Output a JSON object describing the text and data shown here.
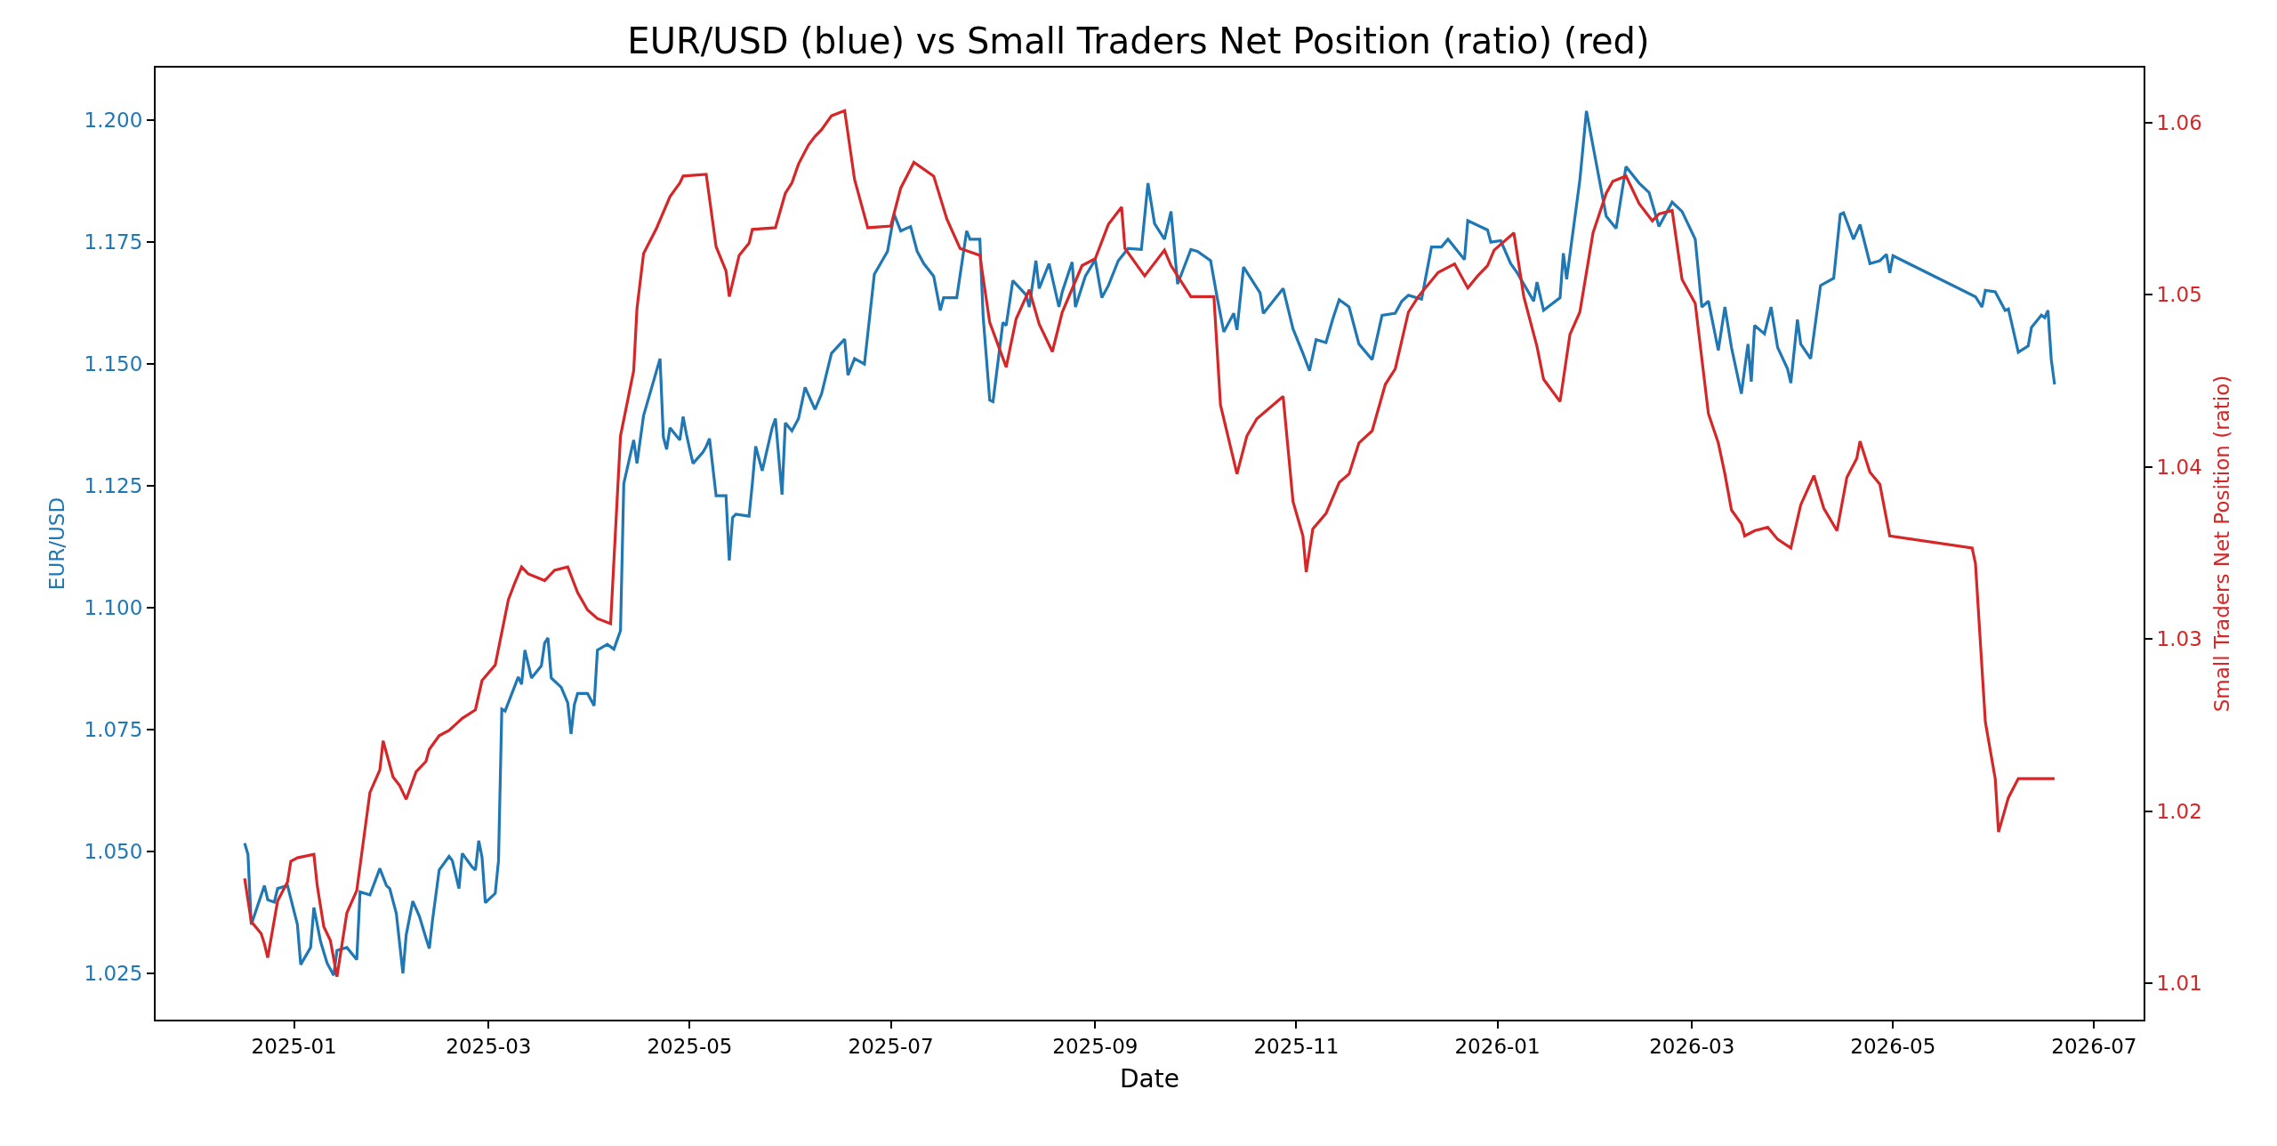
{
  "chart_data": {
    "type": "line",
    "title": "EUR/USD (blue) vs Small Traders Net Position (ratio) (red)",
    "xlabel": "Date",
    "ylabel": "EUR/USD",
    "y2label": "Small Traders Net Position (ratio)",
    "xlim": [
      "2024-11-20",
      "2026-07-16"
    ],
    "xticks": [
      {
        "value": "2025-01-01",
        "label": "2025-01"
      },
      {
        "value": "2025-03-01",
        "label": "2025-03"
      },
      {
        "value": "2025-05-01",
        "label": "2025-05"
      },
      {
        "value": "2025-07-01",
        "label": "2025-07"
      },
      {
        "value": "2025-09-01",
        "label": "2025-09"
      },
      {
        "value": "2025-11-01",
        "label": "2025-11"
      },
      {
        "value": "2026-01-01",
        "label": "2026-01"
      },
      {
        "value": "2026-03-01",
        "label": "2026-03"
      },
      {
        "value": "2026-05-01",
        "label": "2026-05"
      },
      {
        "value": "2026-07-01",
        "label": "2026-07"
      }
    ],
    "ylim": [
      1.0155,
      1.2108
    ],
    "yticks": [
      {
        "value": 1.025,
        "label": "1.025"
      },
      {
        "value": 1.05,
        "label": "1.050"
      },
      {
        "value": 1.075,
        "label": "1.075"
      },
      {
        "value": 1.1,
        "label": "1.100"
      },
      {
        "value": 1.125,
        "label": "1.125"
      },
      {
        "value": 1.15,
        "label": "1.150"
      },
      {
        "value": 1.175,
        "label": "1.175"
      },
      {
        "value": 1.2,
        "label": "1.200"
      }
    ],
    "y2lim": [
      1.0079,
      1.0632
    ],
    "y2ticks": [
      1.01,
      1.02,
      1.03,
      1.04,
      1.05,
      1.06
    ],
    "marker": "none",
    "line_style": "solid",
    "series": [
      {
        "color": "#1f77b4",
        "axis": "y",
        "x": [
          "2024-12-17",
          "2024-12-18",
          "2024-12-19",
          "2024-12-23",
          "2024-12-24",
          "2024-12-26",
          "2024-12-27",
          "2024-12-30",
          "2025-01-02",
          "2025-01-03",
          "2025-01-06",
          "2025-01-07",
          "2025-01-09",
          "2025-01-11",
          "2025-01-13",
          "2025-01-14",
          "2025-01-17",
          "2025-01-20",
          "2025-01-21",
          "2025-01-24",
          "2025-01-27",
          "2025-01-29",
          "2025-01-30",
          "2025-02-01",
          "2025-02-03",
          "2025-02-04",
          "2025-02-06",
          "2025-02-08",
          "2025-02-10",
          "2025-02-11",
          "2025-02-12",
          "2025-02-14",
          "2025-02-17",
          "2025-02-18",
          "2025-02-20",
          "2025-02-21",
          "2025-02-24",
          "2025-02-25",
          "2025-02-26",
          "2025-02-27",
          "2025-02-28",
          "2025-03-03",
          "2025-03-04",
          "2025-03-05",
          "2025-03-06",
          "2025-03-10",
          "2025-03-11",
          "2025-03-12",
          "2025-03-14",
          "2025-03-17",
          "2025-03-18",
          "2025-03-19",
          "2025-03-20",
          "2025-03-23",
          "2025-03-25",
          "2025-03-26",
          "2025-03-27",
          "2025-03-28",
          "2025-03-31",
          "2025-04-02",
          "2025-04-03",
          "2025-04-06",
          "2025-04-08",
          "2025-04-10",
          "2025-04-11",
          "2025-04-14",
          "2025-04-15",
          "2025-04-17",
          "2025-04-22",
          "2025-04-23",
          "2025-04-24",
          "2025-04-25",
          "2025-04-28",
          "2025-04-29",
          "2025-04-30",
          "2025-05-01",
          "2025-05-02",
          "2025-05-05",
          "2025-05-06",
          "2025-05-07",
          "2025-05-09",
          "2025-05-12",
          "2025-05-13",
          "2025-05-14",
          "2025-05-15",
          "2025-05-19",
          "2025-05-20",
          "2025-05-21",
          "2025-05-23",
          "2025-05-26",
          "2025-05-27",
          "2025-05-29",
          "2025-05-30",
          "2025-06-01",
          "2025-06-03",
          "2025-06-05",
          "2025-06-08",
          "2025-06-10",
          "2025-06-13",
          "2025-06-17",
          "2025-06-18",
          "2025-06-20",
          "2025-06-23",
          "2025-06-26",
          "2025-06-30",
          "2025-07-02",
          "2025-07-04",
          "2025-07-07",
          "2025-07-09",
          "2025-07-11",
          "2025-07-14",
          "2025-07-16",
          "2025-07-17",
          "2025-07-21",
          "2025-07-24",
          "2025-07-25",
          "2025-07-28",
          "2025-07-29",
          "2025-07-31",
          "2025-08-01",
          "2025-08-04",
          "2025-08-05",
          "2025-08-07",
          "2025-08-11",
          "2025-08-12",
          "2025-08-14",
          "2025-08-15",
          "2025-08-18",
          "2025-08-21",
          "2025-08-22",
          "2025-08-25",
          "2025-08-26",
          "2025-08-29",
          "2025-09-01",
          "2025-09-03",
          "2025-09-05",
          "2025-09-08",
          "2025-09-11",
          "2025-09-15",
          "2025-09-17",
          "2025-09-19",
          "2025-09-22",
          "2025-09-24",
          "2025-09-26",
          "2025-09-30",
          "2025-10-02",
          "2025-10-06",
          "2025-10-08",
          "2025-10-10",
          "2025-10-13",
          "2025-10-14",
          "2025-10-16",
          "2025-10-21",
          "2025-10-22",
          "2025-10-28",
          "2025-10-31",
          "2025-11-03",
          "2025-11-05",
          "2025-11-07",
          "2025-11-10",
          "2025-11-12",
          "2025-11-14",
          "2025-11-17",
          "2025-11-20",
          "2025-11-24",
          "2025-11-27",
          "2025-12-01",
          "2025-12-03",
          "2025-12-05",
          "2025-12-09",
          "2025-12-12",
          "2025-12-15",
          "2025-12-17",
          "2025-12-22",
          "2025-12-23",
          "2025-12-29",
          "2025-12-30",
          "2026-01-02",
          "2026-01-05",
          "2026-01-07",
          "2026-01-12",
          "2026-01-13",
          "2026-01-15",
          "2026-01-20",
          "2026-01-21",
          "2026-01-22",
          "2026-01-26",
          "2026-01-28",
          "2026-02-03",
          "2026-02-06",
          "2026-02-09",
          "2026-02-13",
          "2026-02-16",
          "2026-02-19",
          "2026-02-23",
          "2026-02-26",
          "2026-03-02",
          "2026-03-04",
          "2026-03-06",
          "2026-03-09",
          "2026-03-11",
          "2026-03-13",
          "2026-03-16",
          "2026-03-18",
          "2026-03-19",
          "2026-03-20",
          "2026-03-23",
          "2026-03-25",
          "2026-03-27",
          "2026-03-30",
          "2026-03-31",
          "2026-04-02",
          "2026-04-03",
          "2026-04-06",
          "2026-04-09",
          "2026-04-13",
          "2026-04-15",
          "2026-04-16",
          "2026-04-19",
          "2026-04-21",
          "2026-04-24",
          "2026-04-27",
          "2026-04-29",
          "2026-04-30",
          "2026-05-01",
          "2026-05-26",
          "2026-05-28",
          "2026-05-29",
          "2026-06-01",
          "2026-06-04",
          "2026-06-05",
          "2026-06-08",
          "2026-06-11",
          "2026-06-12",
          "2026-06-15",
          "2026-06-16",
          "2026-06-17",
          "2026-06-18",
          "2026-06-19"
        ],
        "values": [
          1.0517,
          1.0494,
          1.035,
          1.043,
          1.0401,
          1.0396,
          1.0424,
          1.043,
          1.035,
          1.0268,
          1.0303,
          1.0385,
          1.0316,
          1.0271,
          1.0246,
          1.0297,
          1.0303,
          1.0278,
          1.0417,
          1.0411,
          1.0465,
          1.043,
          1.0424,
          1.0373,
          1.025,
          1.0329,
          1.0398,
          1.0367,
          1.0322,
          1.0301,
          1.036,
          1.0462,
          1.049,
          1.0481,
          1.0424,
          1.0496,
          1.0468,
          1.0462,
          1.0522,
          1.0488,
          1.0395,
          1.0414,
          1.0481,
          1.0792,
          1.0788,
          1.0858,
          1.0843,
          1.0913,
          1.0856,
          1.0881,
          1.0928,
          1.0938,
          1.0856,
          1.0837,
          1.0805,
          1.0741,
          1.0801,
          1.0824,
          1.0824,
          1.0799,
          1.0913,
          1.0925,
          1.0915,
          1.0953,
          1.1255,
          1.1344,
          1.1296,
          1.1394,
          1.1511,
          1.135,
          1.1325,
          1.1369,
          1.1344,
          1.1392,
          1.1356,
          1.1325,
          1.1296,
          1.1319,
          1.1331,
          1.1347,
          1.123,
          1.123,
          1.1097,
          1.1185,
          1.1192,
          1.1188,
          1.1255,
          1.1331,
          1.1281,
          1.1369,
          1.1388,
          1.1232,
          1.1379,
          1.1363,
          1.1388,
          1.1452,
          1.1407,
          1.1439,
          1.1522,
          1.1551,
          1.1477,
          1.1511,
          1.15,
          1.1684,
          1.1731,
          1.1807,
          1.1773,
          1.1782,
          1.1731,
          1.1706,
          1.168,
          1.161,
          1.1636,
          1.1636,
          1.1773,
          1.1756,
          1.1756,
          1.1598,
          1.1426,
          1.1423,
          1.1585,
          1.1579,
          1.1671,
          1.1642,
          1.1617,
          1.1712,
          1.1655,
          1.1706,
          1.1617,
          1.1648,
          1.1709,
          1.1617,
          1.168,
          1.1714,
          1.1636,
          1.1661,
          1.1712,
          1.1737,
          1.1735,
          1.1871,
          1.1788,
          1.1756,
          1.1813,
          1.1664,
          1.1735,
          1.1731,
          1.1712,
          1.1636,
          1.1566,
          1.1604,
          1.157,
          1.1699,
          1.1646,
          1.1604,
          1.1655,
          1.1572,
          1.1522,
          1.1486,
          1.155,
          1.1544,
          1.1591,
          1.1632,
          1.1617,
          1.1541,
          1.1509,
          1.16,
          1.1604,
          1.1629,
          1.1641,
          1.1633,
          1.174,
          1.174,
          1.1756,
          1.1714,
          1.1794,
          1.1775,
          1.175,
          1.1753,
          1.1706,
          1.1687,
          1.1629,
          1.1668,
          1.161,
          1.1636,
          1.1727,
          1.1674,
          1.1877,
          1.2019,
          1.1803,
          1.1778,
          1.1905,
          1.1871,
          1.1852,
          1.1782,
          1.1832,
          1.1813,
          1.1756,
          1.1617,
          1.1629,
          1.1528,
          1.1617,
          1.1534,
          1.1439,
          1.1541,
          1.1464,
          1.1579,
          1.1562,
          1.1617,
          1.1534,
          1.149,
          1.1461,
          1.1591,
          1.1541,
          1.1511,
          1.1661,
          1.1676,
          1.1807,
          1.181,
          1.1756,
          1.1786,
          1.1706,
          1.1712,
          1.1725,
          1.1687,
          1.1722,
          1.1638,
          1.1617,
          1.1651,
          1.1648,
          1.161,
          1.1613,
          1.1524,
          1.1537,
          1.1575,
          1.16,
          1.1595,
          1.161,
          1.1509,
          1.1458
        ]
      },
      {
        "color": "#d62728",
        "axis": "y2",
        "x": [
          "2024-12-17",
          "2024-12-19",
          "2024-12-22",
          "2024-12-23",
          "2024-12-24",
          "2024-12-27",
          "2024-12-30",
          "2024-12-31",
          "2025-01-02",
          "2025-01-07",
          "2025-01-08",
          "2025-01-10",
          "2025-01-12",
          "2025-01-14",
          "2025-01-17",
          "2025-01-20",
          "2025-01-24",
          "2025-01-27",
          "2025-01-28",
          "2025-01-31",
          "2025-02-02",
          "2025-02-04",
          "2025-02-07",
          "2025-02-10",
          "2025-02-11",
          "2025-02-14",
          "2025-02-17",
          "2025-02-21",
          "2025-02-25",
          "2025-02-27",
          "2025-03-03",
          "2025-03-07",
          "2025-03-09",
          "2025-03-11",
          "2025-03-13",
          "2025-03-18",
          "2025-03-21",
          "2025-03-25",
          "2025-03-28",
          "2025-03-31",
          "2025-04-03",
          "2025-04-07",
          "2025-04-10",
          "2025-04-14",
          "2025-04-15",
          "2025-04-17",
          "2025-04-21",
          "2025-04-25",
          "2025-04-28",
          "2025-04-29",
          "2025-05-06",
          "2025-05-09",
          "2025-05-12",
          "2025-05-13",
          "2025-05-16",
          "2025-05-19",
          "2025-05-20",
          "2025-05-27",
          "2025-05-30",
          "2025-06-01",
          "2025-06-03",
          "2025-06-06",
          "2025-06-08",
          "2025-06-10",
          "2025-06-13",
          "2025-06-17",
          "2025-06-20",
          "2025-06-24",
          "2025-07-01",
          "2025-07-04",
          "2025-07-08",
          "2025-07-14",
          "2025-07-18",
          "2025-07-22",
          "2025-07-28",
          "2025-07-31",
          "2025-08-05",
          "2025-08-08",
          "2025-08-12",
          "2025-08-15",
          "2025-08-19",
          "2025-08-22",
          "2025-08-28",
          "2025-09-01",
          "2025-09-05",
          "2025-09-09",
          "2025-09-10",
          "2025-09-16",
          "2025-09-22",
          "2025-09-24",
          "2025-09-30",
          "2025-10-07",
          "2025-10-09",
          "2025-10-14",
          "2025-10-17",
          "2025-10-20",
          "2025-10-28",
          "2025-10-31",
          "2025-11-03",
          "2025-11-04",
          "2025-11-06",
          "2025-11-10",
          "2025-11-14",
          "2025-11-17",
          "2025-11-20",
          "2025-11-24",
          "2025-11-28",
          "2025-12-01",
          "2025-12-05",
          "2025-12-08",
          "2025-12-14",
          "2025-12-19",
          "2025-12-23",
          "2025-12-26",
          "2025-12-29",
          "2025-12-31",
          "2026-01-06",
          "2026-01-09",
          "2026-01-13",
          "2026-01-15",
          "2026-01-20",
          "2026-01-23",
          "2026-01-26",
          "2026-01-30",
          "2026-02-03",
          "2026-02-05",
          "2026-02-09",
          "2026-02-13",
          "2026-02-17",
          "2026-02-19",
          "2026-02-23",
          "2026-02-26",
          "2026-03-02",
          "2026-03-06",
          "2026-03-09",
          "2026-03-11",
          "2026-03-13",
          "2026-03-16",
          "2026-03-17",
          "2026-03-20",
          "2026-03-24",
          "2026-03-27",
          "2026-03-31",
          "2026-04-03",
          "2026-04-07",
          "2026-04-10",
          "2026-04-14",
          "2026-04-17",
          "2026-04-20",
          "2026-04-21",
          "2026-04-24",
          "2026-04-27",
          "2026-04-30",
          "2026-05-25",
          "2026-05-26",
          "2026-05-29",
          "2026-06-01",
          "2026-06-02",
          "2026-06-05",
          "2026-06-08",
          "2026-06-19"
        ],
        "values": [
          1.0161,
          1.0136,
          1.0129,
          1.0123,
          1.0115,
          1.0148,
          1.0159,
          1.0171,
          1.0173,
          1.0175,
          1.0157,
          1.0133,
          1.0125,
          1.0104,
          1.0141,
          1.0154,
          1.0211,
          1.0224,
          1.0241,
          1.022,
          1.0215,
          1.0207,
          1.0223,
          1.0229,
          1.0236,
          1.0244,
          1.0247,
          1.0254,
          1.0259,
          1.0276,
          1.0285,
          1.0323,
          1.0333,
          1.0342,
          1.0338,
          1.0334,
          1.034,
          1.0342,
          1.0327,
          1.0317,
          1.0312,
          1.0309,
          1.0418,
          1.0456,
          1.0492,
          1.0524,
          1.0539,
          1.0557,
          1.0565,
          1.0569,
          1.057,
          1.0528,
          1.0514,
          1.0499,
          1.0523,
          1.053,
          1.0538,
          1.0539,
          1.0559,
          1.0565,
          1.0576,
          1.0587,
          1.0592,
          1.0596,
          1.0604,
          1.0607,
          1.0567,
          1.0539,
          1.054,
          1.0562,
          1.0577,
          1.0569,
          1.0544,
          1.0527,
          1.0523,
          1.0484,
          1.0458,
          1.0486,
          1.0503,
          1.0483,
          1.0467,
          1.049,
          1.0517,
          1.0521,
          1.0541,
          1.0551,
          1.0527,
          1.0511,
          1.0526,
          1.0517,
          1.0499,
          1.0499,
          1.0436,
          1.0396,
          1.0418,
          1.0428,
          1.0441,
          1.038,
          1.036,
          1.0339,
          1.0364,
          1.0373,
          1.0391,
          1.0396,
          1.0414,
          1.0421,
          1.0448,
          1.0457,
          1.049,
          1.0499,
          1.0513,
          1.0518,
          1.0504,
          1.0511,
          1.0517,
          1.0526,
          1.0536,
          1.0499,
          1.047,
          1.0451,
          1.0438,
          1.0477,
          1.049,
          1.0536,
          1.0559,
          1.0566,
          1.0569,
          1.0553,
          1.0543,
          1.0547,
          1.0549,
          1.0509,
          1.0495,
          1.0431,
          1.0414,
          1.0396,
          1.0375,
          1.0367,
          1.036,
          1.0363,
          1.0365,
          1.0358,
          1.0353,
          1.0378,
          1.0395,
          1.0376,
          1.0363,
          1.0394,
          1.0405,
          1.0415,
          1.0397,
          1.039,
          1.036,
          1.0353,
          1.0344,
          1.0252,
          1.0219,
          1.0188,
          1.0208,
          1.0219,
          1.0219
        ]
      }
    ]
  }
}
